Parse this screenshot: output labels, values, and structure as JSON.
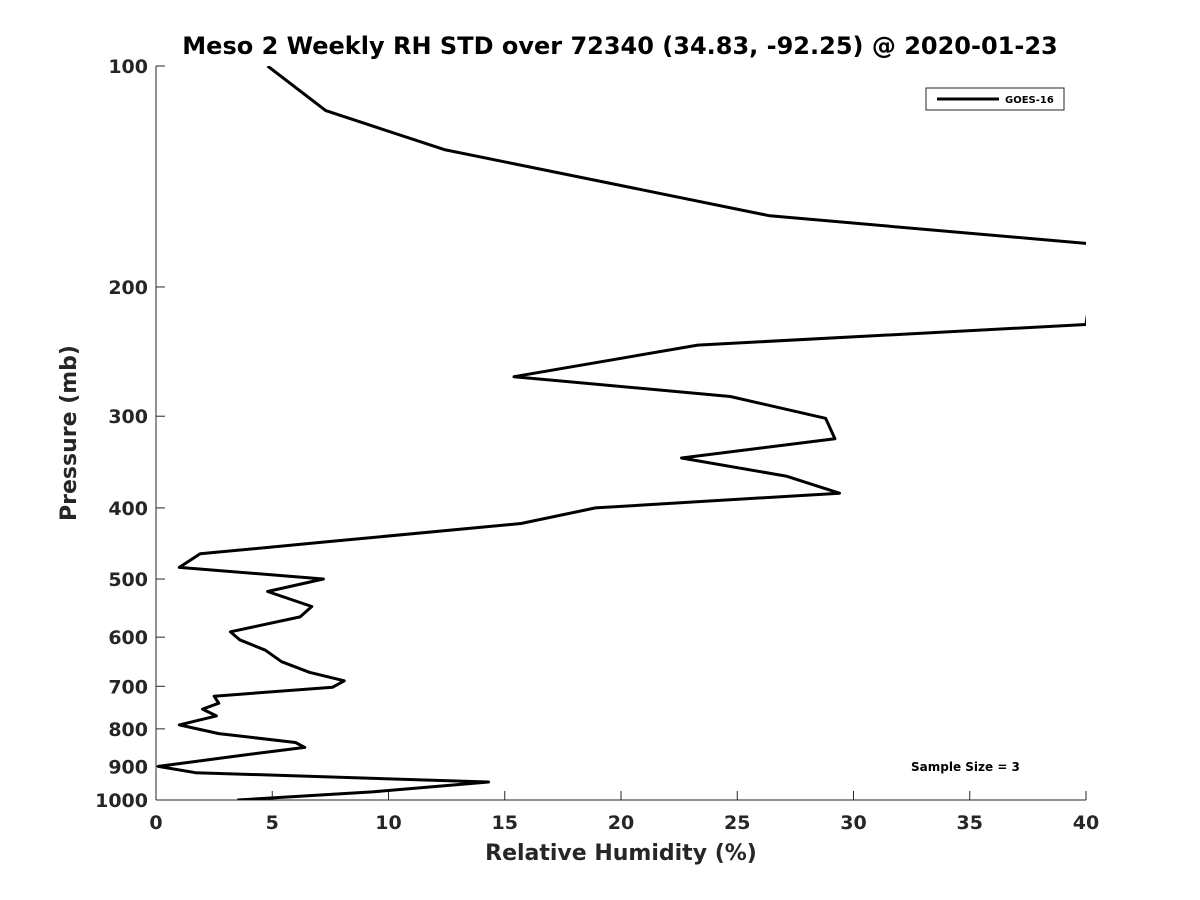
{
  "chart_data": {
    "type": "line",
    "title": "Meso 2 Weekly RH STD over 72340 (34.83, -92.25) @ 2020-01-23",
    "xlabel": "Relative Humidity (%)",
    "ylabel": "Pressure (mb)",
    "xlim": [
      0,
      40
    ],
    "ylim": [
      100,
      1000
    ],
    "y_scale": "log",
    "y_reversed": true,
    "x_ticks": [
      0,
      5,
      10,
      15,
      20,
      25,
      30,
      35,
      40
    ],
    "y_ticks": [
      100,
      200,
      300,
      400,
      500,
      600,
      700,
      800,
      900,
      1000
    ],
    "grid": false,
    "legend_position": "top-right",
    "annotation": "Sample Size = 3",
    "series": [
      {
        "name": "GOES-16",
        "color": "#000000",
        "x": [
          4.8,
          7.3,
          12.4,
          26.4,
          40.5,
          40.0,
          23.3,
          15.4,
          24.7,
          28.8,
          29.2,
          22.6,
          27.1,
          29.4,
          18.9,
          15.7,
          7.3,
          1.9,
          1.0,
          7.2,
          4.8,
          6.7,
          6.2,
          3.2,
          3.6,
          4.7,
          5.4,
          6.6,
          8.1,
          7.6,
          2.5,
          2.7,
          2.0,
          2.6,
          1.0,
          2.7,
          6.0,
          6.4,
          3.6,
          0.1,
          1.7,
          14.3,
          9.3,
          3.5
        ],
        "y": [
          100,
          115,
          130,
          160,
          175,
          225,
          240,
          265,
          282,
          302,
          322,
          342,
          362,
          382,
          400,
          420,
          445,
          462,
          482,
          500,
          520,
          545,
          563,
          590,
          605,
          625,
          648,
          670,
          688,
          702,
          722,
          738,
          752,
          768,
          790,
          812,
          835,
          848,
          870,
          900,
          918,
          945,
          975,
          1000
        ]
      }
    ]
  }
}
